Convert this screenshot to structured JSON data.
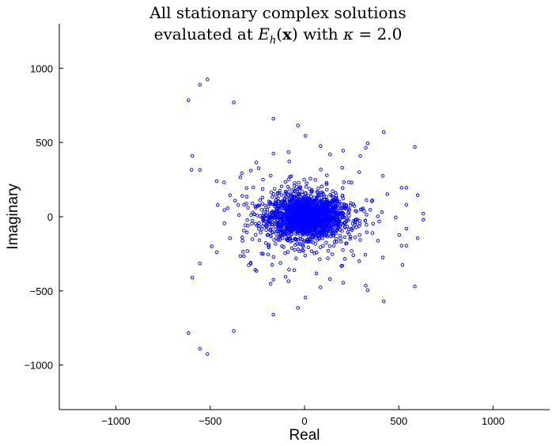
{
  "chart_data": {
    "type": "scatter",
    "title_line1": "All stationary complex solutions",
    "title_line2_prefix": "evaluated at",
    "title_line2_func": "E",
    "title_line2_sub": "h",
    "title_line2_arg": "x",
    "title_line2_mid": "with",
    "title_line2_kappa": "κ",
    "title_line2_value": "= 2.0",
    "xlabel": "Real",
    "ylabel": "Imaginary",
    "xlim": [
      -1300,
      1300
    ],
    "ylim": [
      -1300,
      1300
    ],
    "xticks": [
      -1000,
      -500,
      0,
      500,
      1000
    ],
    "yticks": [
      -1000,
      -500,
      0,
      500,
      1000
    ],
    "xtick_labels": [
      "−1000",
      "−500",
      "0",
      "500",
      "1000"
    ],
    "ytick_labels": [
      "−1000",
      "−500",
      "0",
      "500",
      "1000"
    ],
    "marker": "circle-open",
    "color": "#0000ff",
    "grid": false,
    "outliers": [
      [
        -615,
        785
      ],
      [
        -555,
        890
      ],
      [
        -515,
        925
      ],
      [
        -375,
        770
      ],
      [
        -165,
        660
      ],
      [
        -35,
        615
      ],
      [
        5,
        545
      ],
      [
        -595,
        410
      ],
      [
        -555,
        315
      ],
      [
        -465,
        240
      ],
      [
        -395,
        145
      ],
      [
        -340,
        265
      ],
      [
        -255,
        365
      ],
      [
        -165,
        425
      ],
      [
        -85,
        435
      ],
      [
        -425,
        45
      ],
      [
        -330,
        140
      ],
      [
        85,
        475
      ],
      [
        135,
        420
      ],
      [
        205,
        445
      ],
      [
        325,
        465
      ],
      [
        335,
        495
      ],
      [
        420,
        570
      ],
      [
        585,
        470
      ],
      [
        415,
        275
      ],
      [
        515,
        195
      ],
      [
        540,
        195
      ],
      [
        600,
        145
      ],
      [
        630,
        20
      ],
      [
        630,
        -20
      ],
      [
        540,
        80
      ],
      [
        -615,
        -785
      ],
      [
        -555,
        -890
      ],
      [
        -515,
        -925
      ],
      [
        -375,
        -770
      ],
      [
        -165,
        -660
      ],
      [
        -35,
        -615
      ],
      [
        5,
        -545
      ],
      [
        -595,
        -410
      ],
      [
        -555,
        -315
      ],
      [
        -465,
        -240
      ],
      [
        -395,
        -145
      ],
      [
        -340,
        -265
      ],
      [
        -255,
        -365
      ],
      [
        -165,
        -425
      ],
      [
        -85,
        -435
      ],
      [
        -425,
        -45
      ],
      [
        -330,
        -140
      ],
      [
        85,
        -475
      ],
      [
        135,
        -420
      ],
      [
        205,
        -445
      ],
      [
        325,
        -465
      ],
      [
        335,
        -495
      ],
      [
        420,
        -570
      ],
      [
        585,
        -470
      ],
      [
        415,
        -275
      ],
      [
        515,
        -195
      ],
      [
        540,
        -195
      ],
      [
        600,
        -145
      ],
      [
        540,
        -80
      ],
      [
        290,
        300
      ],
      [
        290,
        -300
      ],
      [
        250,
        230
      ],
      [
        250,
        -230
      ],
      [
        360,
        110
      ],
      [
        360,
        -110
      ],
      [
        200,
        330
      ],
      [
        200,
        -330
      ],
      [
        -285,
        310
      ],
      [
        -285,
        -310
      ],
      [
        -220,
        250
      ],
      [
        -220,
        -250
      ],
      [
        -300,
        60
      ],
      [
        -300,
        -60
      ]
    ],
    "cluster": {
      "count": 1650,
      "center": [
        10,
        0
      ],
      "sigma_real": 95,
      "sigma_imag": 70,
      "count_outer": 380,
      "sigma_real_outer": 180,
      "sigma_imag_outer": 150
    }
  }
}
